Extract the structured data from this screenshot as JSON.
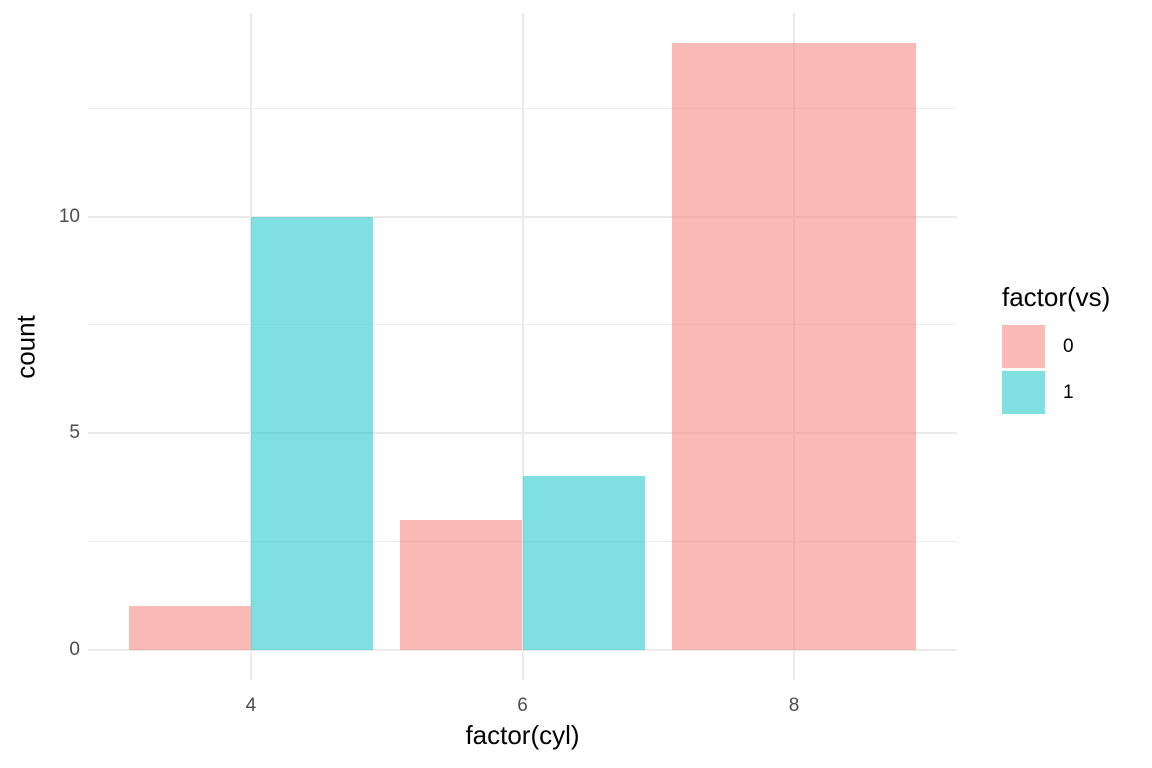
{
  "figure": {
    "background": "#FFFFFF"
  },
  "chart_data": {
    "type": "bar",
    "subtype": "dodged",
    "title": "",
    "xlabel": "factor(cyl)",
    "ylabel": "count",
    "categories": [
      "4",
      "6",
      "8"
    ],
    "series": [
      {
        "name": "0",
        "color": "#F8766D",
        "alpha": 0.5,
        "values": [
          1,
          3,
          14
        ]
      },
      {
        "name": "1",
        "color": "#00BFC4",
        "alpha": 0.5,
        "values": [
          10,
          4,
          0
        ]
      }
    ],
    "y_ticks": [
      0,
      5,
      10
    ],
    "y_minor_ticks": [
      2.5,
      7.5,
      12.5
    ],
    "ylim": [
      -0.7,
      14.7
    ],
    "bar_group_width": 0.9,
    "grid": true,
    "grid_color_major": "#EAEAEA",
    "grid_color_minor": "#EDEDED",
    "tick_label_color": "#4D4D4D",
    "axis_title_color": "#000000",
    "legend_position": "right",
    "legend": {
      "title": "factor(vs)",
      "entries": [
        {
          "label": "0",
          "color": "#F8766D"
        },
        {
          "label": "1",
          "color": "#00BFC4"
        }
      ]
    }
  }
}
